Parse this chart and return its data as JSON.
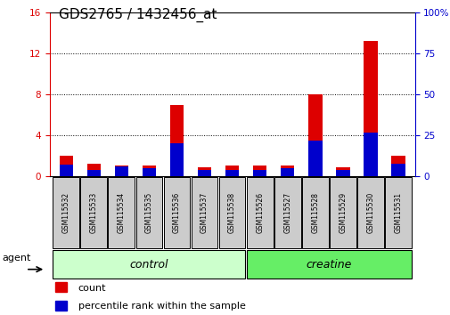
{
  "title": "GDS2765 / 1432456_at",
  "samples": [
    "GSM115532",
    "GSM115533",
    "GSM115534",
    "GSM115535",
    "GSM115536",
    "GSM115537",
    "GSM115538",
    "GSM115526",
    "GSM115527",
    "GSM115528",
    "GSM115529",
    "GSM115530",
    "GSM115531"
  ],
  "count_values": [
    2.0,
    1.2,
    1.1,
    1.1,
    7.0,
    0.9,
    1.1,
    1.1,
    1.1,
    8.0,
    0.9,
    13.2,
    2.0
  ],
  "percentile_values": [
    7,
    4,
    6,
    5,
    20,
    4,
    4,
    4,
    5,
    22,
    4,
    27,
    8
  ],
  "bar_color_red": "#dd0000",
  "bar_color_blue": "#0000cc",
  "ylim_left": [
    0,
    16
  ],
  "ylim_right": [
    0,
    100
  ],
  "yticks_left": [
    0,
    4,
    8,
    12,
    16
  ],
  "yticks_right": [
    0,
    25,
    50,
    75,
    100
  ],
  "ytick_labels_left": [
    "0",
    "4",
    "8",
    "12",
    "16"
  ],
  "ytick_labels_right": [
    "0",
    "25",
    "50",
    "75",
    "100%"
  ],
  "left_tick_color": "#dd0000",
  "right_tick_color": "#0000cc",
  "grid_color": "black",
  "group_colors": [
    "#ccffcc",
    "#66ee66"
  ],
  "group_border_color": "black",
  "bg_color_plot": "white",
  "sample_box_color": "#cccccc",
  "agent_label": "agent",
  "legend_items": [
    "count",
    "percentile rank within the sample"
  ],
  "legend_colors": [
    "#dd0000",
    "#0000cc"
  ],
  "bar_width": 0.5,
  "title_fontsize": 11,
  "tick_label_fontsize": 7.5,
  "group_label_fontsize": 9,
  "legend_fontsize": 8
}
